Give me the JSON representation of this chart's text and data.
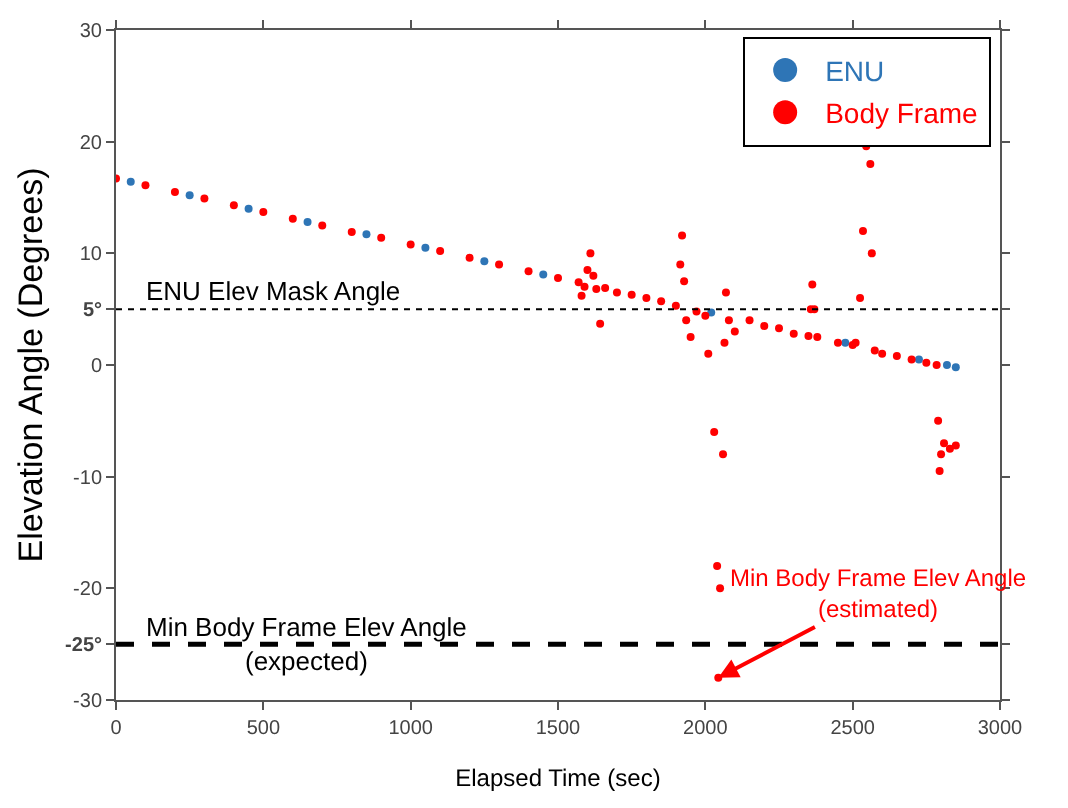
{
  "chart_data": {
    "type": "scatter",
    "xlabel": "Elapsed Time (sec)",
    "ylabel": "Elevation Angle (Degrees)",
    "xlim": [
      0,
      3000
    ],
    "xticks": [
      0,
      500,
      1000,
      1500,
      2000,
      2500,
      3000
    ],
    "ylim": [
      -30,
      30
    ],
    "yticks": [
      -30,
      {
        "value": -25,
        "label": "-25°"
      },
      -20,
      -10,
      0,
      {
        "value": 5,
        "label": "5°"
      },
      10,
      20,
      30
    ],
    "legend": "top right",
    "marker": "circle",
    "series": [
      {
        "name": "ENU",
        "color": "#2e75b6",
        "x": [
          50,
          250,
          450,
          650,
          850,
          1050,
          1250,
          1450,
          2020,
          2475,
          2725,
          2820,
          2850
        ],
        "values": [
          16.4,
          15.2,
          14.0,
          12.8,
          11.7,
          10.5,
          9.3,
          8.1,
          4.7,
          2.0,
          0.5,
          0.0,
          -0.2
        ]
      },
      {
        "name": "Body Frame",
        "color": "#ff0000",
        "x": [
          0,
          100,
          200,
          300,
          400,
          500,
          600,
          700,
          800,
          900,
          1000,
          1100,
          1200,
          1300,
          1400,
          1500,
          1570,
          1580,
          1590,
          1600,
          1610,
          1620,
          1630,
          1643,
          1660,
          1700,
          1750,
          1800,
          1850,
          1900,
          1915,
          1921,
          1928,
          1935,
          1950,
          1970,
          2000,
          2010,
          2030,
          2040,
          2044,
          2050,
          2060,
          2065,
          2070,
          2080,
          2100,
          2150,
          2200,
          2250,
          2300,
          2350,
          2358,
          2363,
          2370,
          2380,
          2450,
          2500,
          2510,
          2525,
          2535,
          2546,
          2560,
          2565,
          2575,
          2600,
          2650,
          2700,
          2750,
          2785,
          2790,
          2795,
          2800,
          2810,
          2830,
          2850
        ],
        "values": [
          16.7,
          16.1,
          15.5,
          14.9,
          14.3,
          13.7,
          13.1,
          12.5,
          11.9,
          11.4,
          10.8,
          10.2,
          9.6,
          9.0,
          8.4,
          7.8,
          7.4,
          6.2,
          7.0,
          8.5,
          10.0,
          8.0,
          6.8,
          3.7,
          6.9,
          6.5,
          6.3,
          6.0,
          5.7,
          5.3,
          9.0,
          11.6,
          7.5,
          4.0,
          2.5,
          4.8,
          4.4,
          1.0,
          -6,
          -18,
          -28,
          -20,
          -8,
          2,
          6.5,
          4.0,
          3.0,
          4.0,
          3.5,
          3.3,
          2.8,
          2.6,
          5,
          7.2,
          5,
          2.5,
          2.0,
          1.8,
          2.0,
          6.0,
          12,
          19.6,
          18,
          10,
          1.3,
          1.0,
          0.8,
          0.5,
          0.2,
          0.0,
          -5,
          -9.5,
          -8,
          -7,
          -7.5,
          -7.2
        ]
      }
    ],
    "ref_lines": [
      {
        "axis": "y",
        "value": 5,
        "label": "ENU Elev Mask Angle",
        "color": "#000000",
        "line_style": "dotted"
      },
      {
        "axis": "y",
        "value": -25,
        "label": "Min Body Frame Elev Angle\n(expected)",
        "color": "#000000",
        "line_style": "dashed"
      }
    ],
    "annotations": [
      {
        "text": "Min Body Frame Elev Angle\n(estimated)",
        "x": 2044,
        "y": -28
      }
    ]
  }
}
